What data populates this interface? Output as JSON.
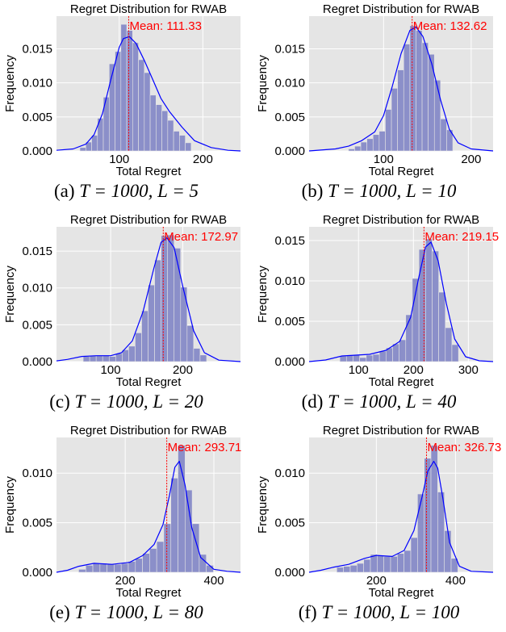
{
  "chart_data": [
    {
      "type": "bar",
      "panel": "a",
      "title": "Regret Distribution for RWAB",
      "xlabel": "Total Regret",
      "ylabel": "Frequency",
      "xlim": [
        25,
        245
      ],
      "ylim": [
        0,
        0.0198
      ],
      "xticks": [
        100,
        200
      ],
      "yticks": [
        0.0,
        0.005,
        0.01,
        0.015
      ],
      "ytick_labels": [
        "0.000",
        "0.005",
        "0.010",
        "0.015"
      ],
      "mean": 111.33,
      "mean_label": "Mean: 111.33",
      "bin_edges": [
        53,
        60,
        67,
        74,
        81,
        88,
        95,
        102,
        109,
        116,
        123,
        130,
        137,
        144,
        151,
        158,
        165,
        172,
        179,
        186
      ],
      "values": [
        0.0005,
        0.0013,
        0.0023,
        0.0048,
        0.0079,
        0.0128,
        0.0146,
        0.0186,
        0.0177,
        0.0159,
        0.0134,
        0.0115,
        0.0082,
        0.0068,
        0.0059,
        0.0045,
        0.0029,
        0.0023,
        0.0012
      ],
      "kde_x": [
        25,
        45,
        60,
        70,
        80,
        90,
        100,
        105,
        112,
        120,
        130,
        140,
        150,
        160,
        175,
        190,
        210,
        230,
        245
      ],
      "kde_y": [
        0.0001,
        0.0003,
        0.001,
        0.0024,
        0.0055,
        0.0105,
        0.0152,
        0.0165,
        0.0168,
        0.0158,
        0.0133,
        0.0105,
        0.0077,
        0.0058,
        0.0035,
        0.0015,
        0.0005,
        0.0001,
        0.0
      ],
      "bar_color": "#8b8fc9",
      "kde_color": "#0000ff",
      "mean_color": "#ff0000",
      "background": "#e5e5e5",
      "grid": true
    },
    {
      "type": "bar",
      "panel": "b",
      "title": "Regret Distribution for RWAB",
      "xlabel": "Total Regret",
      "ylabel": "Frequency",
      "xlim": [
        15,
        225
      ],
      "ylim": [
        0,
        0.0198
      ],
      "xticks": [
        100,
        200
      ],
      "yticks": [
        0.0,
        0.005,
        0.01,
        0.015
      ],
      "ytick_labels": [
        "0.000",
        "0.005",
        "0.010",
        "0.015"
      ],
      "mean": 132.62,
      "mean_label": "Mean: 132.62",
      "bin_edges": [
        60,
        67,
        74,
        81,
        88,
        95,
        102,
        109,
        116,
        123,
        130,
        137,
        144,
        151,
        158,
        165,
        172,
        179
      ],
      "values": [
        0.0003,
        0.0007,
        0.0013,
        0.0018,
        0.0024,
        0.0029,
        0.0061,
        0.0092,
        0.0119,
        0.0157,
        0.0184,
        0.0177,
        0.0159,
        0.0142,
        0.0104,
        0.0047,
        0.0031
      ],
      "kde_x": [
        15,
        45,
        60,
        75,
        90,
        100,
        110,
        120,
        130,
        137,
        145,
        155,
        165,
        175,
        185,
        200,
        225
      ],
      "kde_y": [
        0.0,
        0.0003,
        0.0007,
        0.0015,
        0.0028,
        0.0052,
        0.0095,
        0.0143,
        0.0177,
        0.0182,
        0.0168,
        0.0128,
        0.0075,
        0.0032,
        0.0012,
        0.0003,
        0.0
      ]
    },
    {
      "type": "bar",
      "panel": "c",
      "title": "Regret Distribution for RWAB",
      "xlabel": "Total Regret",
      "ylabel": "Frequency",
      "xlim": [
        25,
        280
      ],
      "ylim": [
        0,
        0.0183
      ],
      "xticks": [
        100,
        200
      ],
      "yticks": [
        0.0,
        0.005,
        0.01,
        0.015
      ],
      "ytick_labels": [
        "0.000",
        "0.005",
        "0.010",
        "0.015"
      ],
      "mean": 172.97,
      "mean_label": "Mean: 172.97",
      "bin_edges": [
        62,
        71,
        80,
        89,
        98,
        107,
        116,
        125,
        134,
        143,
        152,
        161,
        170,
        179,
        188,
        197,
        206,
        215,
        224,
        233
      ],
      "values": [
        0.0007,
        0.0008,
        0.0008,
        0.0008,
        0.0007,
        0.0011,
        0.0016,
        0.0021,
        0.0039,
        0.0069,
        0.0104,
        0.0138,
        0.0171,
        0.0172,
        0.0154,
        0.0101,
        0.0049,
        0.0018,
        0.0009
      ],
      "kde_x": [
        25,
        40,
        60,
        80,
        100,
        115,
        130,
        145,
        160,
        170,
        178,
        188,
        200,
        215,
        230,
        250,
        280
      ],
      "kde_y": [
        0.0001,
        0.0003,
        0.0007,
        0.0008,
        0.0008,
        0.0012,
        0.0028,
        0.0068,
        0.0127,
        0.0162,
        0.0168,
        0.0155,
        0.0102,
        0.0042,
        0.0012,
        0.0002,
        0.0
      ]
    },
    {
      "type": "bar",
      "panel": "d",
      "title": "Regret Distribution for RWAB",
      "xlabel": "Total Regret",
      "ylabel": "Frequency",
      "xlim": [
        10,
        345
      ],
      "ylim": [
        0,
        0.0167
      ],
      "xticks": [
        100,
        200,
        300
      ],
      "yticks": [
        0.0,
        0.005,
        0.01,
        0.015
      ],
      "ytick_labels": [
        "0.000",
        "0.005",
        "0.010",
        "0.015"
      ],
      "mean": 219.15,
      "mean_label": "Mean: 219.15",
      "bin_edges": [
        66,
        78,
        90,
        102,
        114,
        126,
        138,
        150,
        162,
        174,
        186,
        198,
        210,
        222,
        234,
        246,
        258,
        270,
        282
      ],
      "values": [
        0.0007,
        0.0008,
        0.0008,
        0.0005,
        0.0008,
        0.0009,
        0.0013,
        0.0017,
        0.0022,
        0.0027,
        0.0058,
        0.0103,
        0.0139,
        0.0152,
        0.0137,
        0.0086,
        0.0042,
        0.0021
      ],
      "kde_x": [
        10,
        40,
        70,
        95,
        120,
        150,
        175,
        195,
        210,
        222,
        232,
        245,
        260,
        275,
        295,
        320,
        345
      ],
      "kde_y": [
        0.0,
        0.0002,
        0.0007,
        0.0008,
        0.0009,
        0.0014,
        0.0025,
        0.0055,
        0.0105,
        0.0142,
        0.0148,
        0.0125,
        0.0072,
        0.0028,
        0.0006,
        0.0001,
        0.0
      ]
    },
    {
      "type": "bar",
      "panel": "e",
      "title": "Regret Distribution for RWAB",
      "xlabel": "Total Regret",
      "ylabel": "Frequency",
      "xlim": [
        45,
        460
      ],
      "ylim": [
        0,
        0.0136
      ],
      "xticks": [
        200,
        400
      ],
      "yticks": [
        0.0,
        0.005,
        0.01
      ],
      "ytick_labels": [
        "0.000",
        "0.005",
        "0.010"
      ],
      "mean": 293.71,
      "mean_label": "Mean: 293.71",
      "bin_edges": [
        95,
        111,
        127,
        143,
        159,
        175,
        191,
        207,
        223,
        239,
        255,
        271,
        287,
        303,
        319,
        335,
        351,
        367,
        383,
        399
      ],
      "values": [
        0.0003,
        0.0007,
        0.0009,
        0.0009,
        0.0008,
        0.0008,
        0.0009,
        0.0011,
        0.0014,
        0.0019,
        0.0024,
        0.0031,
        0.0049,
        0.0095,
        0.0128,
        0.0083,
        0.0049,
        0.0018,
        0.0007
      ],
      "kde_x": [
        45,
        70,
        95,
        130,
        170,
        210,
        240,
        265,
        285,
        300,
        312,
        322,
        335,
        350,
        370,
        400,
        430,
        460
      ],
      "kde_y": [
        0.0,
        0.0002,
        0.0006,
        0.0009,
        0.0008,
        0.001,
        0.0017,
        0.0028,
        0.0048,
        0.0078,
        0.0106,
        0.0112,
        0.0088,
        0.0045,
        0.0015,
        0.0003,
        0.0001,
        0.0
      ]
    },
    {
      "type": "bar",
      "panel": "f",
      "title": "Regret Distribution for RWAB",
      "xlabel": "Total Regret",
      "ylabel": "Frequency",
      "xlim": [
        30,
        495
      ],
      "ylim": [
        0,
        0.0136
      ],
      "xticks": [
        200,
        400
      ],
      "yticks": [
        0.0,
        0.005,
        0.01
      ],
      "ytick_labels": [
        "0.000",
        "0.005",
        "0.010"
      ],
      "mean": 326.73,
      "mean_label": "Mean: 326.73",
      "bin_edges": [
        100,
        117,
        134,
        151,
        168,
        185,
        202,
        219,
        236,
        253,
        270,
        287,
        304,
        321,
        338,
        355,
        372,
        389,
        406
      ],
      "values": [
        0.0005,
        0.0006,
        0.0007,
        0.0009,
        0.0013,
        0.0018,
        0.0017,
        0.0016,
        0.0016,
        0.0019,
        0.0022,
        0.0035,
        0.0079,
        0.0115,
        0.0128,
        0.0081,
        0.0042,
        0.0014
      ],
      "kde_x": [
        30,
        60,
        90,
        130,
        170,
        200,
        240,
        270,
        295,
        315,
        330,
        345,
        355,
        368,
        385,
        410,
        440,
        495
      ],
      "kde_y": [
        0.0,
        0.0002,
        0.0005,
        0.0008,
        0.0014,
        0.0017,
        0.0016,
        0.0022,
        0.0042,
        0.0075,
        0.0102,
        0.0112,
        0.0105,
        0.0075,
        0.003,
        0.0006,
        0.0001,
        0.0
      ]
    }
  ],
  "captions": [
    {
      "label": "(a)",
      "expr": "T = 1000, L = 5"
    },
    {
      "label": "(b)",
      "expr": "T = 1000, L = 10"
    },
    {
      "label": "(c)",
      "expr": "T = 1000, L = 20"
    },
    {
      "label": "(d)",
      "expr": "T = 1000, L = 40"
    },
    {
      "label": "(e)",
      "expr": "T = 1000, L = 80"
    },
    {
      "label": "(f)",
      "expr": "T = 1000, L = 100"
    }
  ]
}
